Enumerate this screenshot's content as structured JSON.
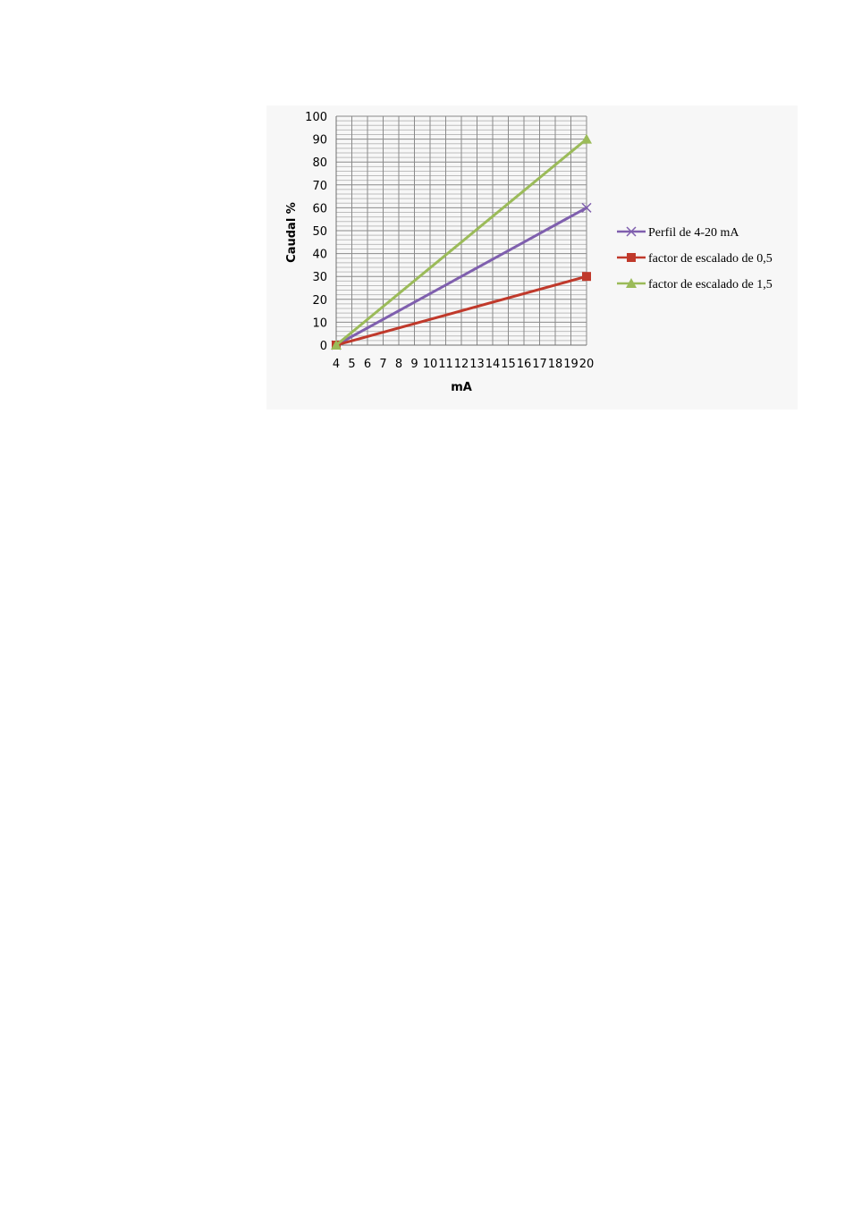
{
  "chart_data": {
    "type": "line",
    "title": "",
    "xlabel": "mA",
    "ylabel": "Caudal %",
    "x": [
      4,
      5,
      6,
      7,
      8,
      9,
      10,
      11,
      12,
      13,
      14,
      15,
      16,
      17,
      18,
      19,
      20
    ],
    "x_tick_labels": [
      "4",
      "5",
      "6",
      "7",
      "8",
      "9",
      "10",
      "11",
      "12",
      "13",
      "14",
      "15",
      "16",
      "17",
      "18",
      "19",
      "20"
    ],
    "y_ticks": [
      0,
      10,
      20,
      30,
      40,
      50,
      60,
      70,
      80,
      90,
      100
    ],
    "xlim": [
      4,
      20
    ],
    "ylim": [
      0,
      100
    ],
    "grid": true,
    "legend_position": "right",
    "series": [
      {
        "name": "Perfil de 4-20 mA",
        "color": "#7f5fae",
        "marker": "x",
        "marker_at": "ends",
        "x": [
          4,
          20
        ],
        "values": [
          0,
          60
        ]
      },
      {
        "name": "factor de escalado de 0,5",
        "color": "#c0392b",
        "marker": "square",
        "marker_at": "ends",
        "x": [
          4,
          20
        ],
        "values": [
          0,
          30
        ]
      },
      {
        "name": "factor de escalado de 1,5",
        "color": "#9bbb59",
        "marker": "triangle",
        "marker_at": "ends",
        "x": [
          4,
          20
        ],
        "values": [
          0,
          90
        ]
      }
    ]
  }
}
